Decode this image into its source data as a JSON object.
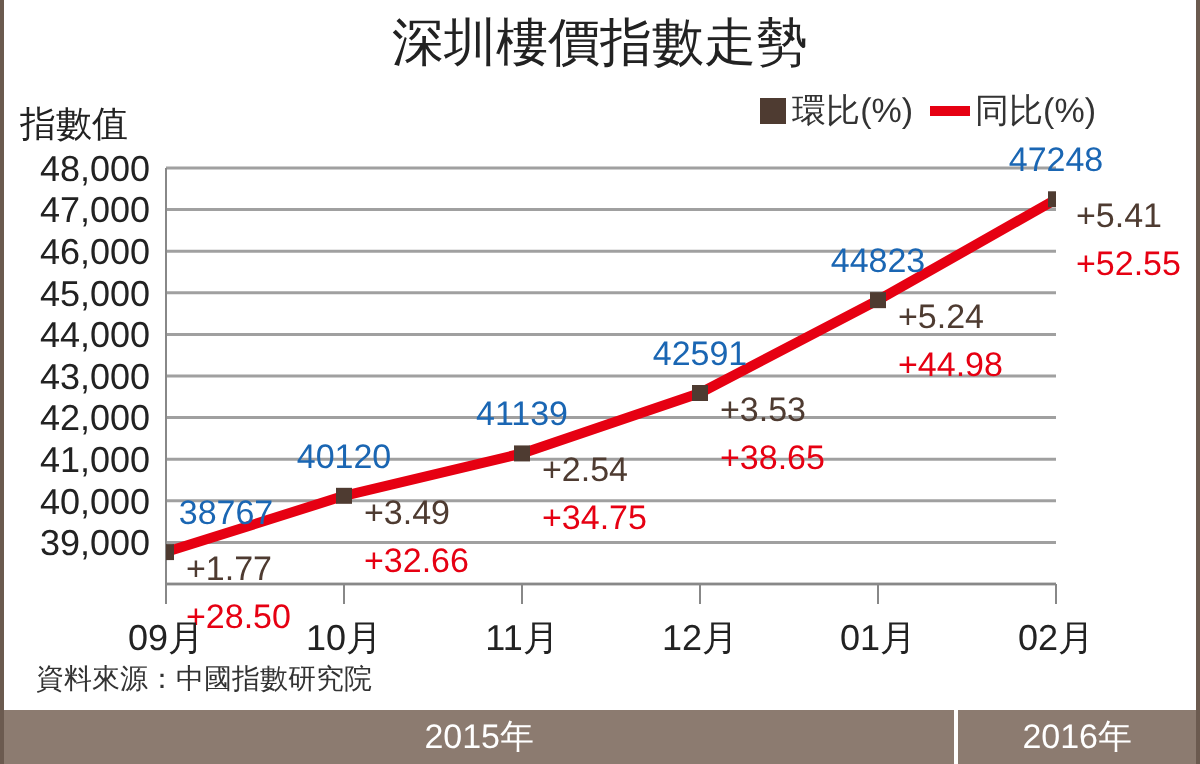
{
  "chart_data": {
    "type": "line",
    "title": "深圳樓價指數走勢",
    "ylabel": "指數值",
    "categories": [
      "09月",
      "10月",
      "11月",
      "12月",
      "01月",
      "02月"
    ],
    "series": [
      {
        "name": "環比(%)",
        "type": "scatter",
        "marker": "square",
        "color": "#4e3b31",
        "values": [
          38767,
          40120,
          41139,
          42591,
          44823,
          47248
        ],
        "value_labels": [
          "38767",
          "40120",
          "41139",
          "42591",
          "44823",
          "47248"
        ]
      },
      {
        "name": "同比(%)",
        "color": "#e60012",
        "values": [
          38767,
          40120,
          41139,
          42591,
          44823,
          47248
        ]
      }
    ],
    "ylim": [
      38000,
      48000
    ],
    "yticks": [
      {
        "value": 38000,
        "label": null
      },
      {
        "value": 39000,
        "label": "39,000"
      },
      {
        "value": 40000,
        "label": "40,000"
      },
      {
        "value": 41000,
        "label": "41,000"
      },
      {
        "value": 42000,
        "label": "42,000"
      },
      {
        "value": 43000,
        "label": "43,000"
      },
      {
        "value": 44000,
        "label": "44,000"
      },
      {
        "value": 45000,
        "label": "45,000"
      },
      {
        "value": 46000,
        "label": "46,000"
      },
      {
        "value": 47000,
        "label": "47,000"
      },
      {
        "value": 48000,
        "label": "48,000"
      }
    ],
    "grid": "y",
    "legend": "top right",
    "annotations": [
      {
        "text": "+1.77",
        "x": "09月",
        "y": 38767
      },
      {
        "text": "+3.49",
        "x": "10月",
        "y": 40120
      },
      {
        "text": "+2.54",
        "x": "11月",
        "y": 41139
      },
      {
        "text": "+3.53",
        "x": "12月",
        "y": 42591
      },
      {
        "text": "+5.24",
        "x": "01月",
        "y": 44823
      },
      {
        "text": "+5.41",
        "x": "02月",
        "y": 47248
      },
      {
        "text": "+28.50",
        "x": "09月",
        "y": 38767
      },
      {
        "text": "+32.66",
        "x": "10月",
        "y": 40120
      },
      {
        "text": "+34.75",
        "x": "11月",
        "y": 41139
      },
      {
        "text": "+38.65",
        "x": "12月",
        "y": 42591
      },
      {
        "text": "+44.98",
        "x": "01月",
        "y": 44823
      },
      {
        "text": "+52.55",
        "x": "02月",
        "y": 47248
      },
      "資料來源：中國指數研究院",
      "2015年",
      "2016年"
    ]
  }
}
